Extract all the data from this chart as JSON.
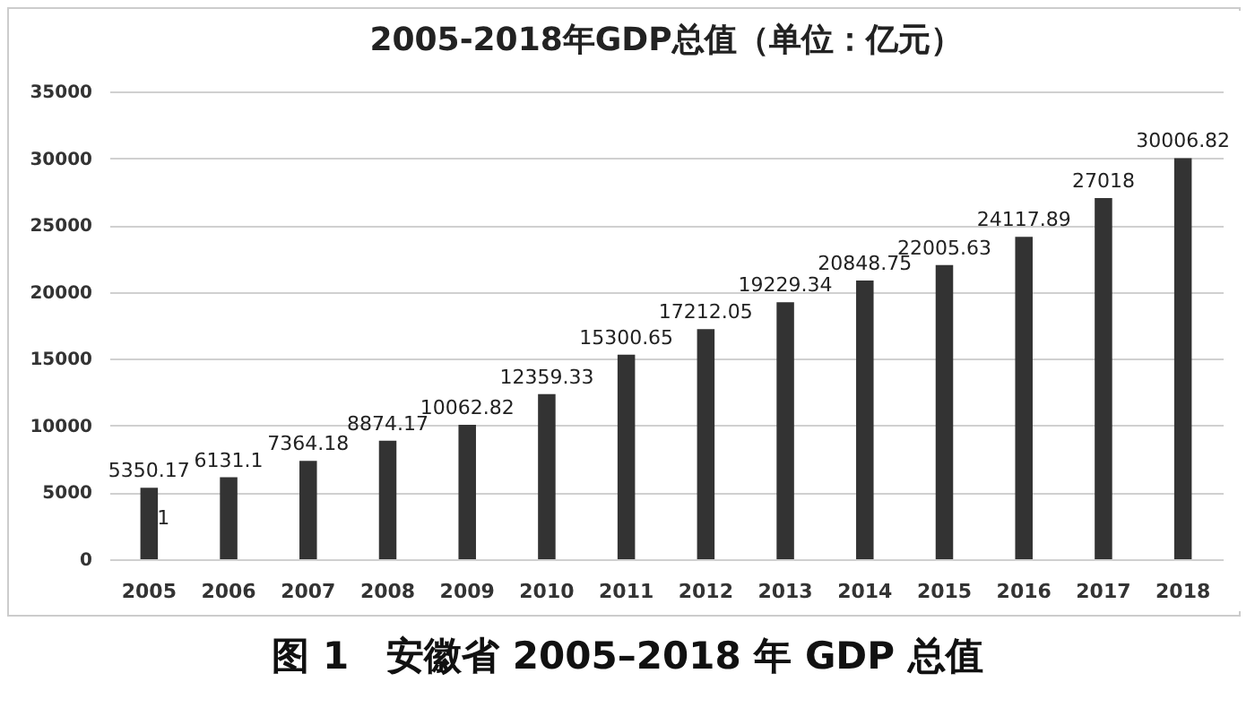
{
  "chart_data": {
    "type": "bar",
    "title": "2005-2018年GDP总值（单位：亿元）",
    "categories": [
      "2005",
      "2006",
      "2007",
      "2008",
      "2009",
      "2010",
      "2011",
      "2012",
      "2013",
      "2014",
      "2015",
      "2016",
      "2017",
      "2018"
    ],
    "values": [
      5350.17,
      6131.1,
      7364.18,
      8874.17,
      10062.82,
      12359.33,
      15300.65,
      17212.05,
      19229.34,
      20848.75,
      22005.63,
      24117.89,
      27018,
      30006.82
    ],
    "color": "#333333",
    "ylim": [
      0,
      35000
    ],
    "yticks": [
      0,
      5000,
      10000,
      15000,
      20000,
      25000,
      30000,
      35000
    ],
    "grid": "y",
    "data_labels": true,
    "annotations": [
      {
        "text": "1",
        "x": "2005",
        "y": 3000
      },
      "图 1　安徽省 2005–2018 年 GDP 总值"
    ]
  }
}
